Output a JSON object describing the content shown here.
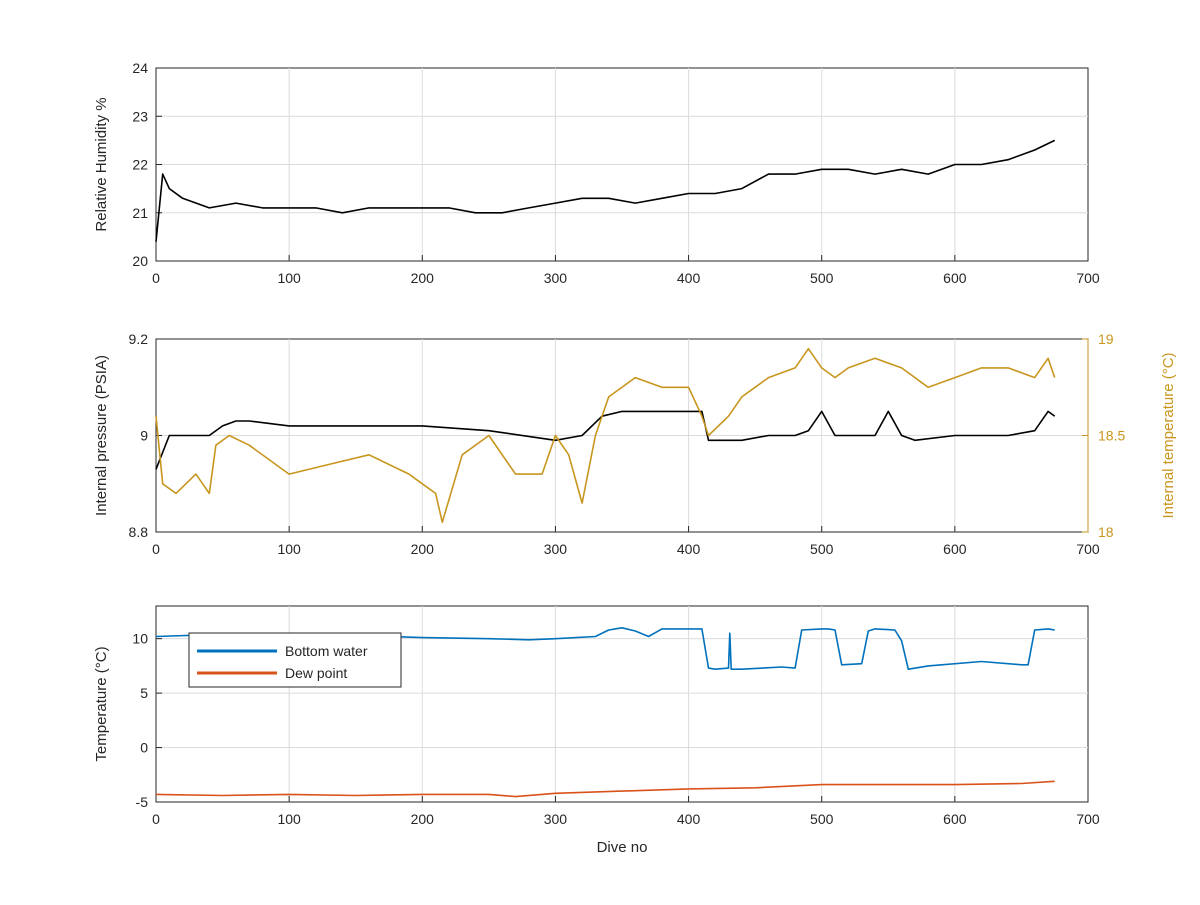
{
  "chart_data": [
    {
      "type": "line",
      "ylabel": "Relative Humidity %",
      "xlabel": "",
      "xlim": [
        0,
        700
      ],
      "ylim": [
        20,
        24
      ],
      "xticks": [
        "0",
        "100",
        "200",
        "300",
        "400",
        "500",
        "600",
        "700"
      ],
      "yticks": [
        "20",
        "21",
        "22",
        "23",
        "24"
      ],
      "grid": true,
      "series": [
        {
          "color": "#000000",
          "x": [
            0,
            5,
            10,
            20,
            40,
            60,
            80,
            100,
            120,
            140,
            160,
            180,
            200,
            220,
            240,
            260,
            280,
            300,
            320,
            340,
            360,
            380,
            400,
            420,
            440,
            460,
            480,
            500,
            520,
            540,
            560,
            580,
            600,
            620,
            640,
            660,
            675
          ],
          "y": [
            20.4,
            21.8,
            21.5,
            21.3,
            21.1,
            21.2,
            21.1,
            21.1,
            21.1,
            21.0,
            21.1,
            21.1,
            21.1,
            21.1,
            21.0,
            21.0,
            21.1,
            21.2,
            21.3,
            21.3,
            21.2,
            21.3,
            21.4,
            21.4,
            21.5,
            21.8,
            21.8,
            21.9,
            21.9,
            21.8,
            21.9,
            21.8,
            22.0,
            22.0,
            22.1,
            22.3,
            22.5
          ]
        }
      ]
    },
    {
      "type": "line",
      "ylabel": "Internal pressure (PSIA)",
      "y2label": "Internal temperature (°C)",
      "xlabel": "",
      "xlim": [
        0,
        700
      ],
      "ylim": [
        8.8,
        9.2
      ],
      "y2lim": [
        18,
        19
      ],
      "xticks": [
        "0",
        "100",
        "200",
        "300",
        "400",
        "500",
        "600",
        "700"
      ],
      "yticks": [
        "8.8",
        "9",
        "9.2"
      ],
      "y2ticks": [
        "18",
        "18.5",
        "19"
      ],
      "grid": true,
      "series": [
        {
          "color": "#000000",
          "axis": "left",
          "x": [
            0,
            10,
            20,
            40,
            50,
            60,
            70,
            100,
            150,
            200,
            250,
            300,
            320,
            335,
            350,
            380,
            400,
            410,
            415,
            440,
            460,
            480,
            490,
            500,
            510,
            520,
            540,
            550,
            560,
            570,
            600,
            640,
            660,
            670,
            675
          ],
          "y": [
            8.93,
            9.0,
            9.0,
            9.0,
            9.02,
            9.03,
            9.03,
            9.02,
            9.02,
            9.02,
            9.01,
            8.99,
            9.0,
            9.04,
            9.05,
            9.05,
            9.05,
            9.05,
            8.99,
            8.99,
            9.0,
            9.0,
            9.01,
            9.05,
            9.0,
            9.0,
            9.0,
            9.05,
            9.0,
            8.99,
            9.0,
            9.0,
            9.01,
            9.05,
            9.04
          ]
        },
        {
          "color": "#c8961e",
          "axis": "right",
          "x": [
            0,
            5,
            15,
            30,
            40,
            45,
            55,
            70,
            100,
            130,
            160,
            190,
            200,
            210,
            215,
            230,
            250,
            270,
            290,
            300,
            310,
            320,
            330,
            340,
            360,
            380,
            400,
            410,
            415,
            430,
            440,
            460,
            480,
            490,
            500,
            510,
            520,
            540,
            560,
            580,
            600,
            620,
            640,
            660,
            670,
            675
          ],
          "y": [
            18.6,
            18.25,
            18.2,
            18.3,
            18.2,
            18.45,
            18.5,
            18.45,
            18.3,
            18.35,
            18.4,
            18.3,
            18.25,
            18.2,
            18.05,
            18.4,
            18.5,
            18.3,
            18.3,
            18.5,
            18.4,
            18.15,
            18.5,
            18.7,
            18.8,
            18.75,
            18.75,
            18.6,
            18.5,
            18.6,
            18.7,
            18.8,
            18.85,
            18.95,
            18.85,
            18.8,
            18.85,
            18.9,
            18.85,
            18.75,
            18.8,
            18.85,
            18.85,
            18.8,
            18.9,
            18.8
          ]
        }
      ]
    },
    {
      "type": "line",
      "ylabel": "Temperature (°C)",
      "xlabel": "Dive no",
      "xlim": [
        0,
        700
      ],
      "ylim": [
        -5,
        13
      ],
      "xticks": [
        "0",
        "100",
        "200",
        "300",
        "400",
        "500",
        "600",
        "700"
      ],
      "yticks": [
        "-5",
        "0",
        "5",
        "10"
      ],
      "grid": true,
      "legend": "top-left",
      "series": [
        {
          "name": "Bottom water",
          "color": "#0072bd",
          "x": [
            0,
            50,
            100,
            150,
            200,
            250,
            280,
            300,
            330,
            340,
            350,
            360,
            370,
            380,
            400,
            410,
            415,
            420,
            430,
            431,
            432,
            440,
            470,
            480,
            485,
            500,
            505,
            510,
            515,
            530,
            535,
            540,
            555,
            560,
            565,
            580,
            620,
            650,
            655,
            660,
            670,
            675
          ],
          "y": [
            10.2,
            10.4,
            10.4,
            10.3,
            10.1,
            10.0,
            9.9,
            10.0,
            10.2,
            10.8,
            11.0,
            10.7,
            10.2,
            10.9,
            10.9,
            10.9,
            7.3,
            7.2,
            7.3,
            10.5,
            7.2,
            7.2,
            7.4,
            7.3,
            10.8,
            10.9,
            10.9,
            10.8,
            7.6,
            7.7,
            10.7,
            10.9,
            10.8,
            9.8,
            7.2,
            7.5,
            7.9,
            7.6,
            7.6,
            10.8,
            10.9,
            10.8
          ]
        },
        {
          "name": "Dew point",
          "color": "#d95319",
          "x": [
            0,
            50,
            100,
            150,
            200,
            250,
            270,
            300,
            350,
            400,
            450,
            500,
            550,
            600,
            650,
            675
          ],
          "y": [
            -4.3,
            -4.4,
            -4.3,
            -4.4,
            -4.3,
            -4.3,
            -4.5,
            -4.2,
            -4.0,
            -3.8,
            -3.7,
            -3.4,
            -3.4,
            -3.4,
            -3.3,
            -3.1
          ]
        }
      ]
    }
  ]
}
